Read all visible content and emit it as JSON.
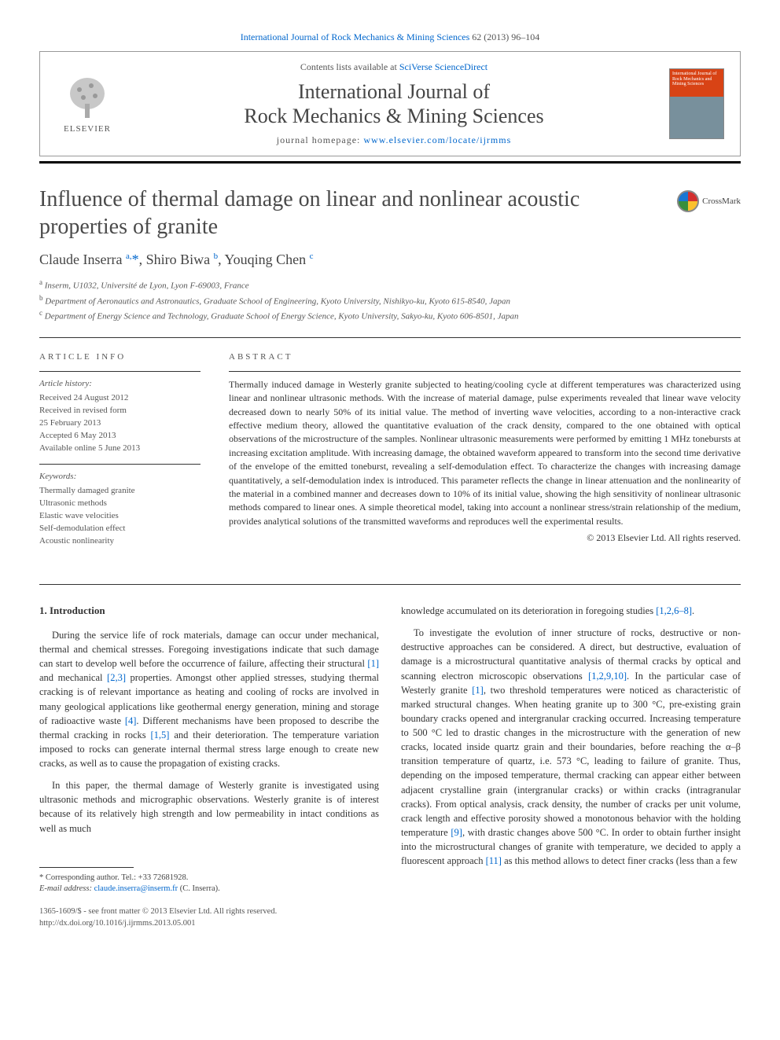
{
  "top_citation": {
    "prefix": "",
    "journal_link": "International Journal of Rock Mechanics & Mining Sciences",
    "suffix": " 62 (2013) 96–104"
  },
  "header": {
    "contents_prefix": "Contents lists available at ",
    "contents_link": "SciVerse ScienceDirect",
    "journal_name": "International Journal of\nRock Mechanics & Mining Sciences",
    "homepage_prefix": "journal homepage: ",
    "homepage_link": "www.elsevier.com/locate/ijrmms",
    "elsevier_label": "ELSEVIER",
    "cover_text": "International Journal of Rock Mechanics and Mining Sciences"
  },
  "crossmark_label": "CrossMark",
  "title": "Influence of thermal damage on linear and nonlinear acoustic properties of granite",
  "authors_html": "Claude Inserra <sup>a,</sup><span class='star'>*</span>, Shiro Biwa <sup>b</sup>, Youqing Chen <sup>c</sup>",
  "affiliations": [
    {
      "sup": "a",
      "text": "Inserm, U1032, Université de Lyon, Lyon F-69003, France"
    },
    {
      "sup": "b",
      "text": "Department of Aeronautics and Astronautics, Graduate School of Engineering, Kyoto University, Nishikyo-ku, Kyoto 615-8540, Japan"
    },
    {
      "sup": "c",
      "text": "Department of Energy Science and Technology, Graduate School of Energy Science, Kyoto University, Sakyo-ku, Kyoto 606-8501, Japan"
    }
  ],
  "article_info": {
    "label": "ARTICLE INFO",
    "history_label": "Article history:",
    "history": [
      "Received 24 August 2012",
      "Received in revised form",
      "25 February 2013",
      "Accepted 6 May 2013",
      "Available online 5 June 2013"
    ],
    "keywords_label": "Keywords:",
    "keywords": [
      "Thermally damaged granite",
      "Ultrasonic methods",
      "Elastic wave velocities",
      "Self-demodulation effect",
      "Acoustic nonlinearity"
    ]
  },
  "abstract": {
    "label": "ABSTRACT",
    "text": "Thermally induced damage in Westerly granite subjected to heating/cooling cycle at different temperatures was characterized using linear and nonlinear ultrasonic methods. With the increase of material damage, pulse experiments revealed that linear wave velocity decreased down to nearly 50% of its initial value. The method of inverting wave velocities, according to a non-interactive crack effective medium theory, allowed the quantitative evaluation of the crack density, compared to the one obtained with optical observations of the microstructure of the samples. Nonlinear ultrasonic measurements were performed by emitting 1 MHz tonebursts at increasing excitation amplitude. With increasing damage, the obtained waveform appeared to transform into the second time derivative of the envelope of the emitted toneburst, revealing a self-demodulation effect. To characterize the changes with increasing damage quantitatively, a self-demodulation index is introduced. This parameter reflects the change in linear attenuation and the nonlinearity of the material in a combined manner and decreases down to 10% of its initial value, showing the high sensitivity of nonlinear ultrasonic methods compared to linear ones. A simple theoretical model, taking into account a nonlinear stress/strain relationship of the medium, provides analytical solutions of the transmitted waveforms and reproduces well the experimental results.",
    "copyright": "© 2013 Elsevier Ltd. All rights reserved."
  },
  "body": {
    "heading": "1.  Introduction",
    "col1": [
      {
        "type": "p",
        "segments": [
          {
            "t": "text",
            "v": "During the service life of rock materials, damage can occur under mechanical, thermal and chemical stresses. Foregoing investigations indicate that such damage can start to develop well before the occurrence of failure, affecting their structural "
          },
          {
            "t": "link",
            "v": "[1]"
          },
          {
            "t": "text",
            "v": " and mechanical "
          },
          {
            "t": "link",
            "v": "[2,3]"
          },
          {
            "t": "text",
            "v": " properties. Amongst other applied stresses, studying thermal cracking is of relevant importance as heating and cooling of rocks are involved in many geological applications like geothermal energy generation, mining and storage of radioactive waste "
          },
          {
            "t": "link",
            "v": "[4]"
          },
          {
            "t": "text",
            "v": ". Different mechanisms have been proposed to describe the thermal cracking in rocks "
          },
          {
            "t": "link",
            "v": "[1,5]"
          },
          {
            "t": "text",
            "v": " and their deterioration. The temperature variation imposed to rocks can generate internal thermal stress large enough to create new cracks, as well as to cause the propagation of existing cracks."
          }
        ]
      },
      {
        "type": "p",
        "segments": [
          {
            "t": "text",
            "v": "In this paper, the thermal damage of Westerly granite is investigated using ultrasonic methods and micrographic observations. Westerly granite is of interest because of its relatively high strength and low permeability in intact conditions as well as much"
          }
        ]
      }
    ],
    "col2": [
      {
        "type": "cont",
        "segments": [
          {
            "t": "text",
            "v": "knowledge accumulated on its deterioration in foregoing studies "
          },
          {
            "t": "link",
            "v": "[1,2,6–8]"
          },
          {
            "t": "text",
            "v": "."
          }
        ]
      },
      {
        "type": "p",
        "segments": [
          {
            "t": "text",
            "v": "To investigate the evolution of inner structure of rocks, destructive or non-destructive approaches can be considered. A direct, but destructive, evaluation of damage is a microstructural quantitative analysis of thermal cracks by optical and scanning electron microscopic observations "
          },
          {
            "t": "link",
            "v": "[1,2,9,10]"
          },
          {
            "t": "text",
            "v": ". In the particular case of Westerly granite "
          },
          {
            "t": "link",
            "v": "[1]"
          },
          {
            "t": "text",
            "v": ", two threshold temperatures were noticed as characteristic of marked structural changes. When heating granite up to 300 °C, pre-existing grain boundary cracks opened and intergranular cracking occurred. Increasing temperature to 500 °C led to drastic changes in the microstructure with the generation of new cracks, located inside quartz grain and their boundaries, before reaching the α–β transition temperature of quartz, i.e. 573 °C, leading to failure of granite. Thus, depending on the imposed temperature, thermal cracking can appear either between adjacent crystalline grain (intergranular cracks) or within cracks (intragranular cracks). From optical analysis, crack density, the number of cracks per unit volume, crack length and effective porosity showed a monotonous behavior with the holding temperature "
          },
          {
            "t": "link",
            "v": "[9]"
          },
          {
            "t": "text",
            "v": ", with drastic changes above 500 °C. In order to obtain further insight into the microstructural changes of granite with temperature, we decided to apply a fluorescent approach "
          },
          {
            "t": "link",
            "v": "[11]"
          },
          {
            "t": "text",
            "v": " as this method allows to detect finer cracks (less than a few"
          }
        ]
      }
    ]
  },
  "footnotes": {
    "corr_line": "* Corresponding author. Tel.: +33 72681928.",
    "email_label": "E-mail address: ",
    "email": "claude.inserra@inserm.fr",
    "email_suffix": " (C. Inserra)."
  },
  "bottom": {
    "line1": "1365-1609/$ - see front matter © 2013 Elsevier Ltd. All rights reserved.",
    "line2": "http://dx.doi.org/10.1016/j.ijrmms.2013.05.001"
  },
  "colors": {
    "link": "#0066cc",
    "text": "#333333",
    "muted": "#555555",
    "rule": "#333333",
    "elsevier_orange": "#f57c00"
  }
}
